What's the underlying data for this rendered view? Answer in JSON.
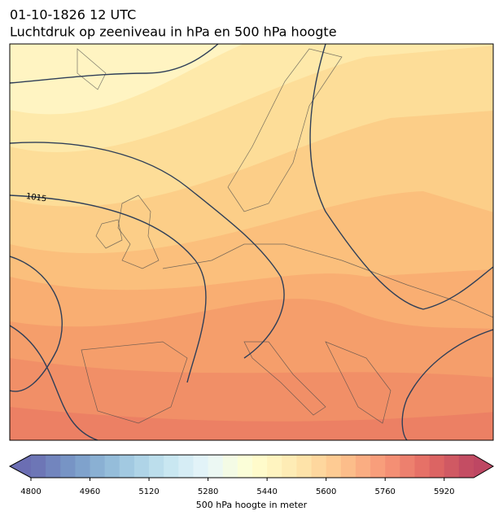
{
  "header": {
    "date": "01-10-1826 12 UTC",
    "title": "Luchtdruk op zeeniveau in hPa en 500 hPa hoogte"
  },
  "map": {
    "contour_labels": [
      "1015"
    ]
  },
  "colorbar": {
    "clim": [
      4800,
      6000
    ],
    "levels": 30,
    "ticks": [
      4800,
      4960,
      5120,
      5280,
      5440,
      5600,
      5760,
      5920
    ],
    "label": "500 hPa hoogte in meter"
  }
}
